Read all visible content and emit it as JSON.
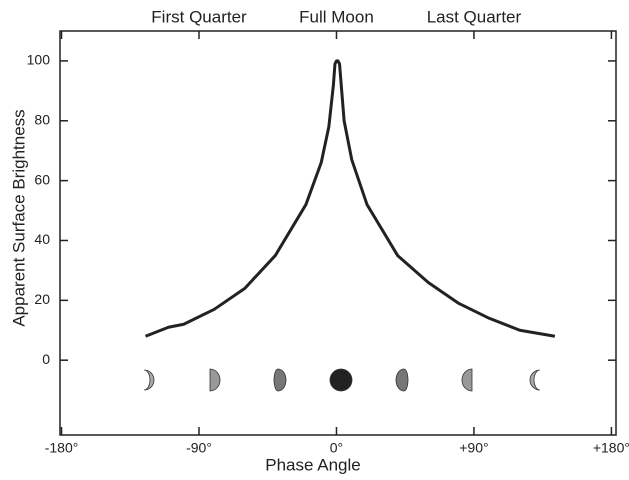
{
  "chart_data": {
    "type": "line",
    "top_labels": [
      "First Quarter",
      "Full Moon",
      "Last Quarter"
    ],
    "xlabel": "Phase Angle",
    "ylabel": "Apparent Surface Brightness",
    "x": [
      -125,
      -110,
      -100,
      -80,
      -60,
      -40,
      -20,
      -10,
      -5,
      -2,
      -1,
      0,
      1,
      2,
      5,
      10,
      20,
      40,
      60,
      80,
      100,
      120,
      143
    ],
    "series": [
      {
        "color": "#222222",
        "values": [
          8,
          11,
          12,
          17,
          24,
          35,
          52,
          66,
          78,
          92,
          99,
          100,
          100,
          99,
          80,
          67,
          52,
          35,
          26,
          19,
          14,
          10,
          8
        ]
      }
    ],
    "xlim": [
      -181,
      183
    ],
    "xticks": [
      {
        "value": -180,
        "label": "-180°"
      },
      {
        "value": -90,
        "label": "-90°"
      },
      {
        "value": 0,
        "label": "0°"
      },
      {
        "value": 90,
        "label": "+90°"
      },
      {
        "value": 180,
        "label": "+180°"
      }
    ],
    "ylim": [
      -25,
      110
    ],
    "yticks": [
      0,
      20,
      40,
      60,
      80,
      100
    ],
    "grid": false
  }
}
